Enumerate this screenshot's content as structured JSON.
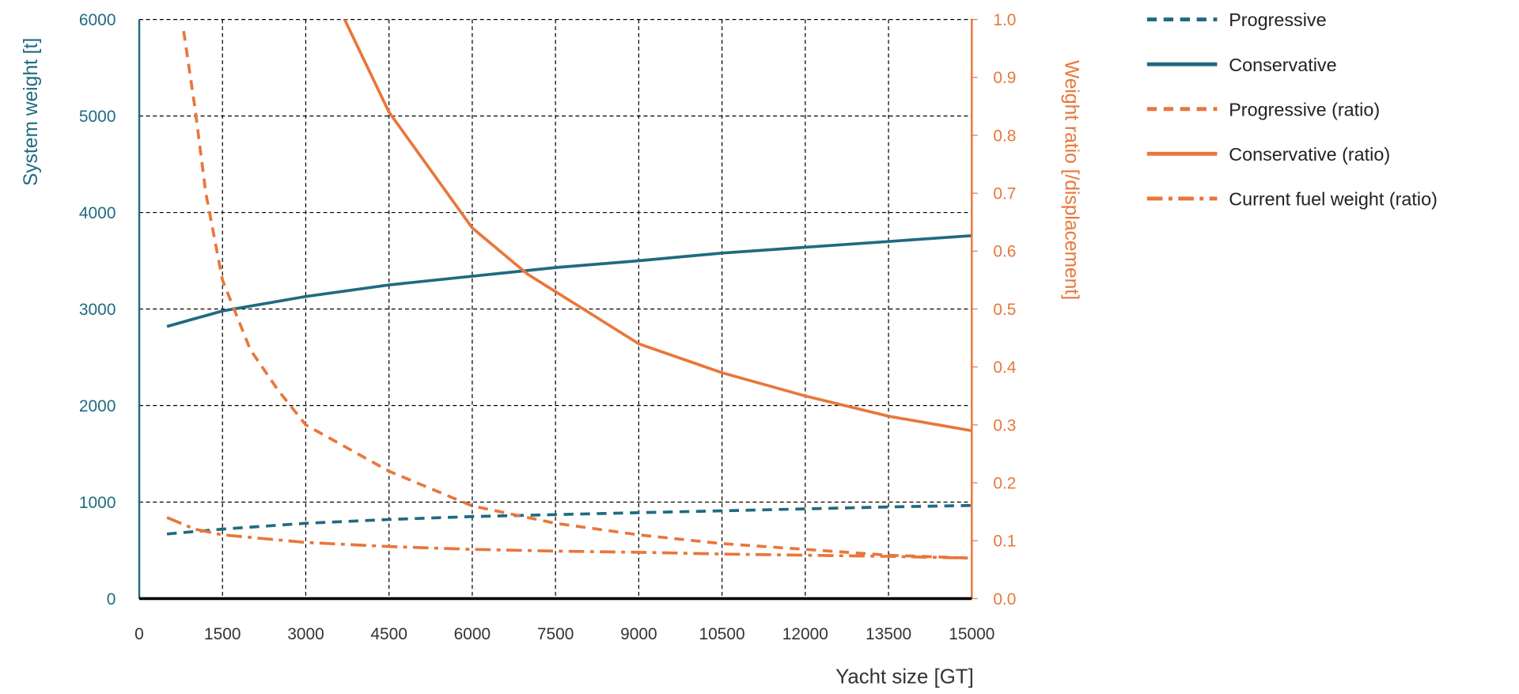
{
  "chart_data": {
    "type": "line",
    "xlabel": "Yacht size [GT]",
    "ylabel": "System weight [t]",
    "y2label": "Weight ratio [/displacement]",
    "xlim": [
      0,
      15000
    ],
    "ylim": [
      0,
      6000
    ],
    "y2lim": [
      0,
      1.0
    ],
    "xticks": [
      "0",
      "1500",
      "3000",
      "4500",
      "6000",
      "7500",
      "9000",
      "10500",
      "12000",
      "13500",
      "15000"
    ],
    "yticks": [
      "0",
      "1000",
      "2000",
      "3000",
      "4000",
      "5000",
      "6000"
    ],
    "y2ticks": [
      "0.0",
      "0.1",
      "0.2",
      "0.3",
      "0.4",
      "0.5",
      "0.6",
      "0.7",
      "0.8",
      "0.9",
      "1.0"
    ],
    "grid": true,
    "legend_position": "right",
    "colors": {
      "teal": "#1f6b80",
      "orange": "#e8773a"
    },
    "series": [
      {
        "name": "Progressive",
        "axis": "left",
        "color": "#1f6b80",
        "style": "dashed",
        "x": [
          500,
          1500,
          3000,
          4500,
          6000,
          7500,
          9000,
          10500,
          12000,
          13500,
          15000
        ],
        "y": [
          670,
          720,
          780,
          820,
          850,
          870,
          890,
          910,
          930,
          950,
          965
        ]
      },
      {
        "name": "Conservative",
        "axis": "left",
        "color": "#1f6b80",
        "style": "solid",
        "x": [
          500,
          1000,
          1500,
          3000,
          4500,
          6000,
          7500,
          9000,
          10500,
          12000,
          13500,
          15000
        ],
        "y": [
          2820,
          2900,
          2980,
          3130,
          3250,
          3340,
          3430,
          3500,
          3580,
          3640,
          3700,
          3760
        ]
      },
      {
        "name": "Progressive (ratio)",
        "axis": "right",
        "color": "#e8773a",
        "style": "dashed",
        "x": [
          800,
          1000,
          1200,
          1500,
          2000,
          2500,
          3000,
          4500,
          6000,
          7500,
          9000,
          10500,
          12000,
          13500,
          15000
        ],
        "y": [
          0.98,
          0.85,
          0.7,
          0.55,
          0.43,
          0.36,
          0.3,
          0.22,
          0.16,
          0.13,
          0.11,
          0.095,
          0.085,
          0.075,
          0.07
        ]
      },
      {
        "name": "Conservative (ratio)",
        "axis": "right",
        "color": "#e8773a",
        "style": "solid",
        "x": [
          3700,
          4500,
          6000,
          7000,
          7500,
          9000,
          10500,
          12000,
          13500,
          15000
        ],
        "y": [
          1.0,
          0.84,
          0.64,
          0.56,
          0.53,
          0.44,
          0.39,
          0.35,
          0.315,
          0.29
        ]
      },
      {
        "name": "Current fuel weight (ratio)",
        "axis": "right",
        "color": "#e8773a",
        "style": "dashdot",
        "x": [
          500,
          1000,
          1500,
          3000,
          4500,
          6000,
          7500,
          9000,
          10500,
          12000,
          13500,
          15000
        ],
        "y": [
          0.14,
          0.12,
          0.11,
          0.097,
          0.09,
          0.085,
          0.082,
          0.08,
          0.077,
          0.075,
          0.073,
          0.07
        ]
      }
    ]
  }
}
